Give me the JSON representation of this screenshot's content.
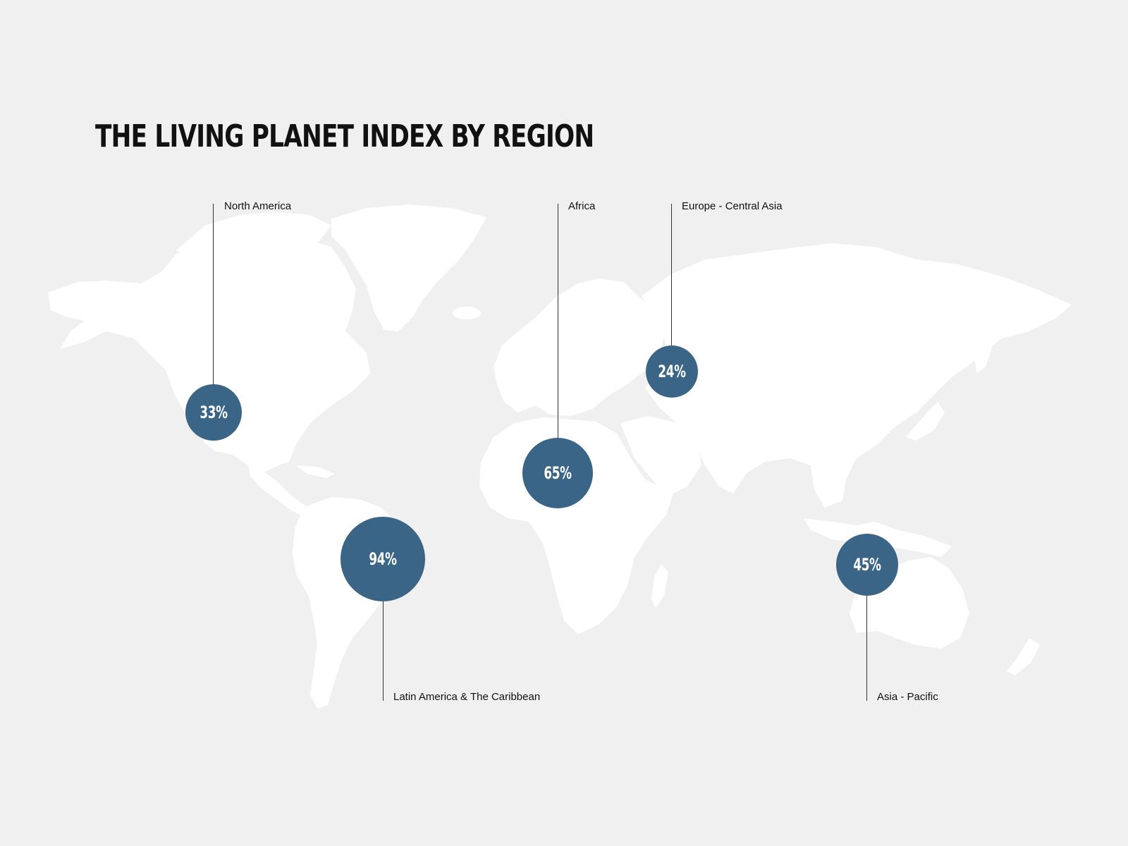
{
  "title": "THE LIVING PLANET INDEX BY REGION",
  "colors": {
    "background": "#f0f0f0",
    "land": "#ffffff",
    "bubble": "#3b6586",
    "leader_line": "#333333"
  },
  "regions": [
    {
      "name": "North America",
      "value": "33%"
    },
    {
      "name": "Africa",
      "value": "65%"
    },
    {
      "name": "Europe - Central Asia",
      "value": "24%"
    },
    {
      "name": "Latin America & The Caribbean",
      "value": "94%"
    },
    {
      "name": "Asia - Pacific",
      "value": "45%"
    }
  ]
}
